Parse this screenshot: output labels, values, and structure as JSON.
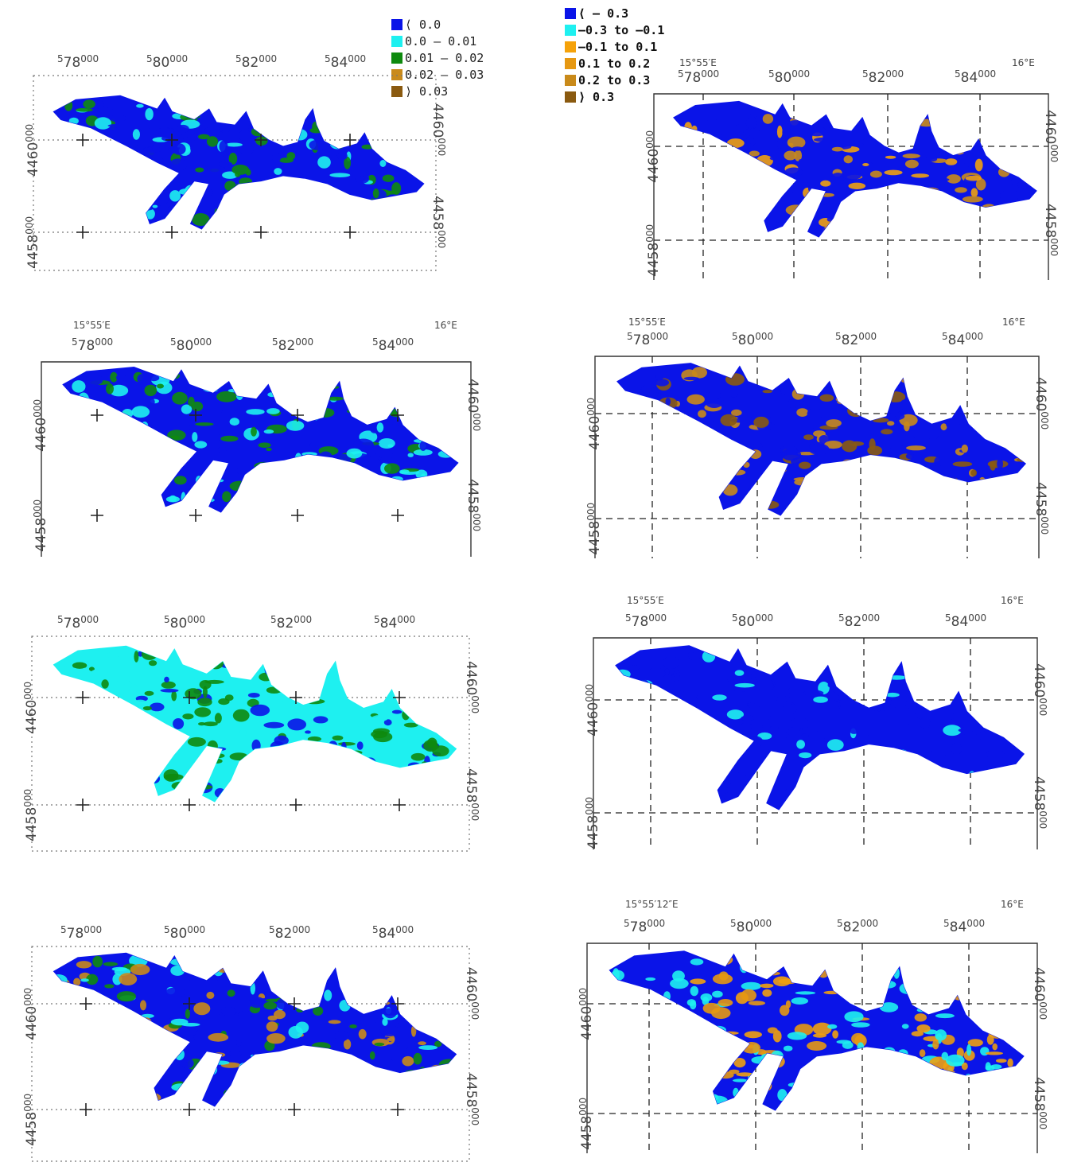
{
  "colors": {
    "blue": "#0a14e8",
    "cyan": "#1ef0f0",
    "green": "#0e8a0e",
    "orange": "#f0a010",
    "tan": "#c98a1a",
    "brown": "#8a5a10",
    "grid": "#333333"
  },
  "legend_left": {
    "items": [
      {
        "label": "⟨ 0.0",
        "color": "#0a14e8"
      },
      {
        "label": "0.0 – 0.01",
        "color": "#1ef0f0"
      },
      {
        "label": "0.01 – 0.02",
        "color": "#0e8a0e"
      },
      {
        "label": "0.02 – 0.03",
        "color": "#c98a1a"
      },
      {
        "label": "⟩ 0.03",
        "color": "#8a5a10"
      }
    ]
  },
  "legend_right": {
    "items": [
      {
        "label": "⟨ – 0.3",
        "color": "#0a14e8"
      },
      {
        "label": "–0.3 to –0.1",
        "color": "#1ef0f0"
      },
      {
        "label": "–0.1 to 0.1",
        "color": "#f5a20a"
      },
      {
        "label": "0.1 to 0.2",
        "color": "#e69812"
      },
      {
        "label": "0.2 to 0.3",
        "color": "#c98a1a"
      },
      {
        "label": "⟩ 0.3",
        "color": "#8a5a10"
      }
    ]
  },
  "axis": {
    "x_ticks": [
      {
        "lead": "5",
        "main": "78",
        "sup": "000"
      },
      {
        "lead": "5",
        "main": "80",
        "sup": "000"
      },
      {
        "lead": "5",
        "main": "82",
        "sup": "000"
      },
      {
        "lead": "5",
        "main": "84",
        "sup": "000"
      }
    ],
    "y_ticks": [
      {
        "lead": "44",
        "main": "60",
        "sup": "000"
      },
      {
        "lead": "44",
        "main": "58",
        "sup": "000"
      }
    ],
    "lon_left": "15°55′E",
    "lon_left_last": "15°55′12″E",
    "lon_right": "16°E"
  },
  "panels": [
    {
      "id": "left-1",
      "palette": [
        "#0a14e8",
        "#0a14e8",
        "#0a14e8",
        "#1ef0f0",
        "#0e8a0e"
      ]
    },
    {
      "id": "left-2",
      "palette": [
        "#0a14e8",
        "#1ef0f0",
        "#0a14e8",
        "#0e8a0e",
        "#1ef0f0"
      ]
    },
    {
      "id": "left-3",
      "palette": [
        "#1ef0f0",
        "#0e8a0e",
        "#1ef0f0",
        "#0a14e8",
        "#0e8a0e"
      ]
    },
    {
      "id": "left-4",
      "palette": [
        "#0a14e8",
        "#1ef0f0",
        "#0e8a0e",
        "#c98a1a",
        "#0a14e8"
      ]
    },
    {
      "id": "right-1",
      "palette": [
        "#0a14e8",
        "#0a14e8",
        "#0a14e8",
        "#c98a1a",
        "#f0a010"
      ]
    },
    {
      "id": "right-2",
      "palette": [
        "#0a14e8",
        "#0a14e8",
        "#0a14e8",
        "#c98a1a",
        "#8a5a10"
      ]
    },
    {
      "id": "right-3",
      "palette": [
        "#0a14e8",
        "#0a14e8",
        "#0a14e8",
        "#0a14e8",
        "#1ef0f0"
      ]
    },
    {
      "id": "right-4",
      "palette": [
        "#0a14e8",
        "#1ef0f0",
        "#f0a010",
        "#e69812",
        "#1ef0f0"
      ]
    }
  ]
}
